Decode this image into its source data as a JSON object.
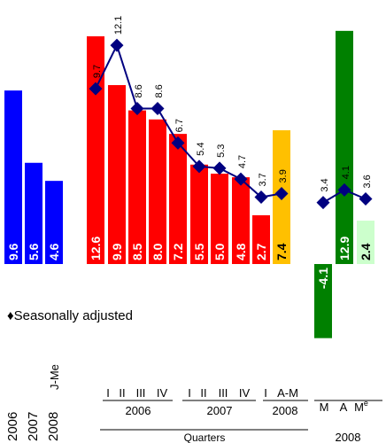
{
  "chart_data": {
    "type": "bar",
    "categories": [
      "2006",
      "2007",
      "2008 J-Me",
      "I",
      "II",
      "III",
      "IV",
      "I",
      "II",
      "III",
      "IV",
      "I",
      "A-M",
      "M",
      "A",
      "Me"
    ],
    "category_groups": [
      {
        "label": "2006"
      },
      {
        "label": "2007"
      },
      {
        "label": "2008"
      },
      {
        "label": "Quarters"
      },
      {
        "label": "2008"
      }
    ],
    "bars": [
      {
        "value": 9.6,
        "color": "#0000ff"
      },
      {
        "value": 5.6,
        "color": "#0000ff"
      },
      {
        "value": 4.6,
        "color": "#0000ff"
      },
      {
        "value": 12.6,
        "color": "#ff0000"
      },
      {
        "value": 9.9,
        "color": "#ff0000"
      },
      {
        "value": 8.5,
        "color": "#ff0000"
      },
      {
        "value": 8.0,
        "color": "#ff0000"
      },
      {
        "value": 7.2,
        "color": "#ff0000"
      },
      {
        "value": 5.5,
        "color": "#ff0000"
      },
      {
        "value": 5.0,
        "color": "#ff0000"
      },
      {
        "value": 4.8,
        "color": "#ff0000"
      },
      {
        "value": 2.7,
        "color": "#ff0000"
      },
      {
        "value": 7.4,
        "color": "#ffc000"
      },
      {
        "value": -4.1,
        "color": "#008000"
      },
      {
        "value": 12.9,
        "color": "#008000"
      },
      {
        "value": 2.4,
        "color": "#ccffcc"
      }
    ],
    "series": [
      {
        "name": "Seasonally adjusted",
        "marker": "diamond",
        "color": "#000080",
        "segments": [
          {
            "bars": [
              4,
              5,
              6,
              7,
              8,
              9,
              10,
              11,
              12,
              13
            ],
            "values": [
              9.7,
              12.1,
              8.6,
              8.6,
              6.7,
              5.4,
              5.3,
              4.7,
              3.7,
              3.9
            ]
          },
          {
            "bars": [
              14,
              15,
              16
            ],
            "values": [
              3.4,
              4.1,
              3.6
            ]
          }
        ]
      }
    ],
    "legend": {
      "label": "Seasonally adjusted",
      "symbol": "♦",
      "placement": "left, below bars"
    },
    "ylim": [
      -5.5,
      13.5
    ],
    "grid": false
  }
}
